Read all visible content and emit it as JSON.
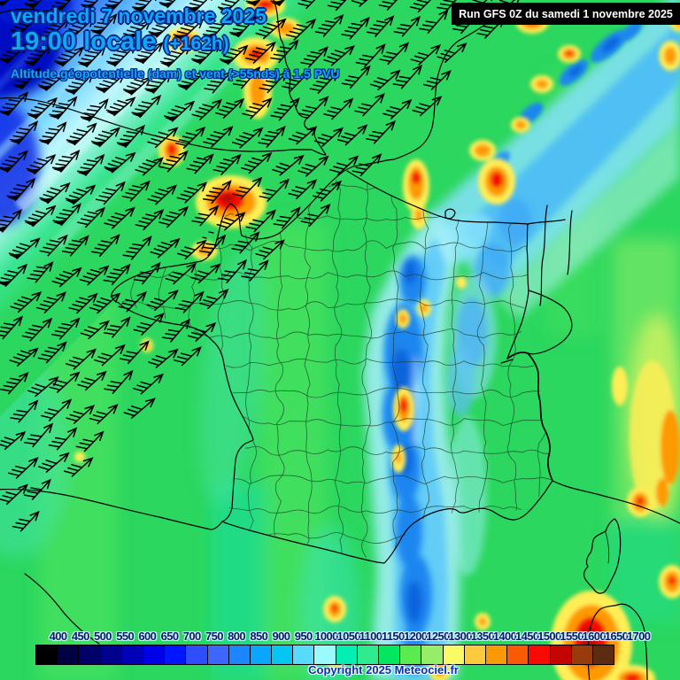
{
  "header": {
    "date": "vendredi 7 novembre 2025",
    "time": "19:00 locale",
    "run_offset": "(+162h)",
    "subtitle": "Altitude géopotentielle (dam) et vent (>55nds) à 1.5 PVU"
  },
  "run_bar": {
    "text": "Run GFS 0Z du samedi 1 novembre 2025"
  },
  "footer": {
    "copyright": "Copyright 2025 Meteociel.fr"
  },
  "colorbar": {
    "unit": "dam",
    "values": [
      400,
      450,
      500,
      550,
      600,
      650,
      700,
      750,
      800,
      850,
      900,
      950,
      1000,
      1050,
      1100,
      1150,
      1200,
      1250,
      1300,
      1350,
      1400,
      1450,
      1500,
      1550,
      1600,
      1650,
      1700
    ],
    "colors": [
      "#000000",
      "#000042",
      "#000068",
      "#00008E",
      "#0000B6",
      "#0000E8",
      "#0016FE",
      "#2E4EFE",
      "#3E66FE",
      "#1C86FE",
      "#0AA6FE",
      "#04C6F2",
      "#58DAFA",
      "#9AFAFC",
      "#02EEB2",
      "#2EEC8E",
      "#02E660",
      "#5AEC4E",
      "#96EE68",
      "#FAFA64",
      "#FACA3C",
      "#FA9A02",
      "#FA5A04",
      "#F60A02",
      "#C40400",
      "#983A0C",
      "#5C2C10"
    ]
  },
  "map": {
    "base_green": "#2BD75E",
    "trough_blue": "#1F86F0",
    "anomaly_red": "#F51000",
    "title_blue": "#0FA6F6"
  }
}
